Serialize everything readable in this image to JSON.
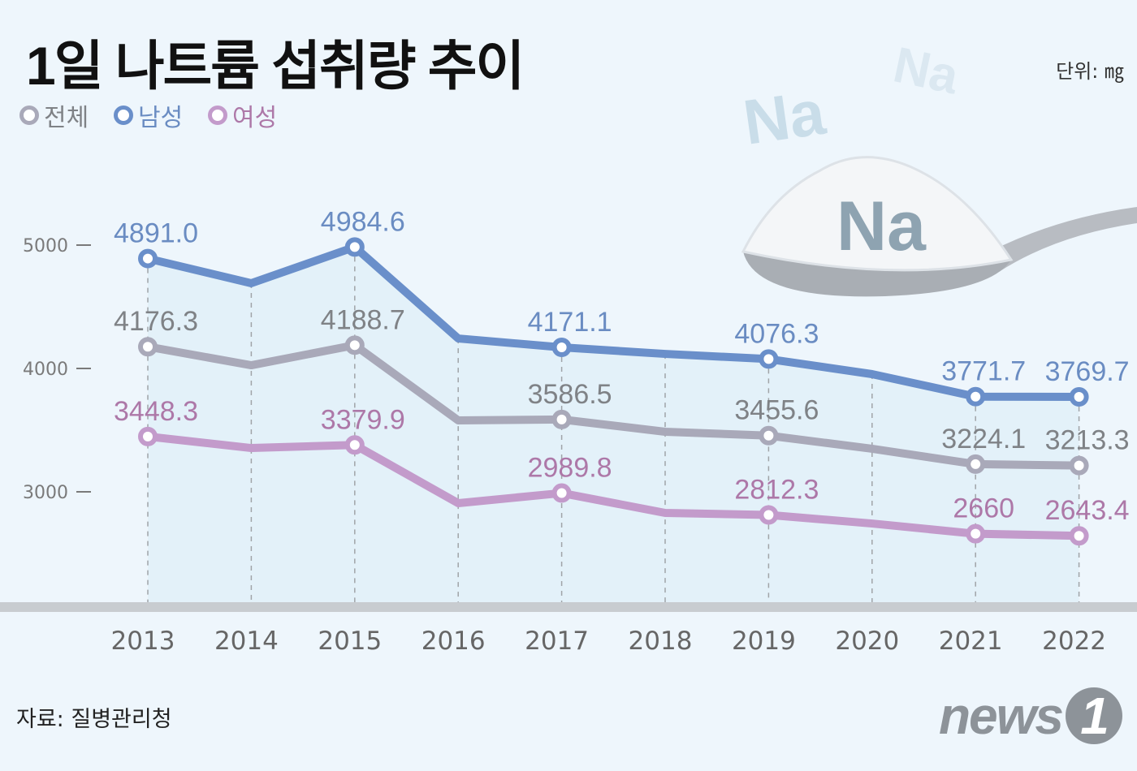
{
  "title": "1일 나트륨 섭취량 추이",
  "unit": "단위: ㎎",
  "source": "자료: 질병관리청",
  "logo": "news1",
  "decor": {
    "na": "Na"
  },
  "colors": {
    "total": "#a9a9b9",
    "male": "#6a8fca",
    "female": "#c39bcb",
    "total_text": "#7f8286",
    "male_text": "#6a8cc2",
    "female_text": "#ad78a8"
  },
  "chart_data": {
    "type": "line",
    "title": "1일 나트륨 섭취량 추이",
    "ylabel": "",
    "xlabel": "",
    "ylim": [
      2200,
      5300
    ],
    "yticks": [
      3000,
      4000,
      5000
    ],
    "grid": "vertical dashed",
    "legend_position": "top-left",
    "categories": [
      "2013",
      "2014",
      "2015",
      "2016",
      "2017",
      "2018",
      "2019",
      "2020",
      "2021",
      "2022"
    ],
    "series": [
      {
        "name": "전체",
        "key": "total",
        "values": [
          4176.3,
          4026,
          4188.7,
          3579,
          3586.5,
          3487,
          3455.6,
          3349,
          3224.1,
          3213.3
        ],
        "labels": [
          "4176.3",
          "",
          "4188.7",
          "",
          "3586.5",
          "",
          "3455.6",
          "",
          "3224.1",
          "3213.3"
        ]
      },
      {
        "name": "남성",
        "key": "male",
        "values": [
          4891.0,
          4691,
          4984.6,
          4243,
          4171.1,
          4118,
          4076.3,
          3954,
          3771.7,
          3769.7
        ],
        "labels": [
          "4891.0",
          "",
          "4984.6",
          "",
          "4171.1",
          "",
          "4076.3",
          "",
          "3771.7",
          "3769.7"
        ]
      },
      {
        "name": "여성",
        "key": "female",
        "values": [
          3448.3,
          3355,
          3379.9,
          2908,
          2989.8,
          2829,
          2812.3,
          2743,
          2660,
          2643.4
        ],
        "labels": [
          "3448.3",
          "",
          "3379.9",
          "",
          "2989.8",
          "",
          "2812.3",
          "",
          "2660",
          "2643.4"
        ]
      }
    ]
  }
}
